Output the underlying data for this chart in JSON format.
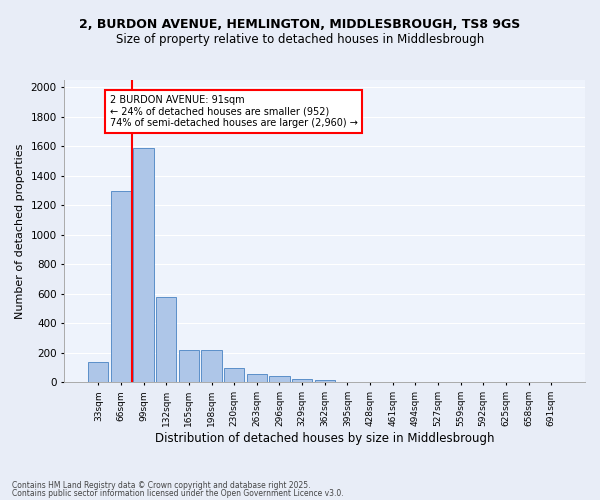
{
  "title1": "2, BURDON AVENUE, HEMLINGTON, MIDDLESBROUGH, TS8 9GS",
  "title2": "Size of property relative to detached houses in Middlesbrough",
  "xlabel": "Distribution of detached houses by size in Middlesbrough",
  "ylabel": "Number of detached properties",
  "categories": [
    "33sqm",
    "66sqm",
    "99sqm",
    "132sqm",
    "165sqm",
    "198sqm",
    "230sqm",
    "263sqm",
    "296sqm",
    "329sqm",
    "362sqm",
    "395sqm",
    "428sqm",
    "461sqm",
    "494sqm",
    "527sqm",
    "559sqm",
    "592sqm",
    "625sqm",
    "658sqm",
    "691sqm"
  ],
  "bar_values": [
    140,
    1295,
    1590,
    580,
    220,
    220,
    100,
    55,
    45,
    25,
    15,
    5,
    0,
    0,
    0,
    0,
    0,
    0,
    0,
    0,
    0
  ],
  "bar_color": "#aec6e8",
  "bar_edge_color": "#5b8fc9",
  "vline_color": "red",
  "annotation_text": "2 BURDON AVENUE: 91sqm\n← 24% of detached houses are smaller (952)\n74% of semi-detached houses are larger (2,960) →",
  "annotation_box_color": "white",
  "annotation_box_edge_color": "red",
  "ylim": [
    0,
    2050
  ],
  "yticks": [
    0,
    200,
    400,
    600,
    800,
    1000,
    1200,
    1400,
    1600,
    1800,
    2000
  ],
  "footer1": "Contains HM Land Registry data © Crown copyright and database right 2025.",
  "footer2": "Contains public sector information licensed under the Open Government Licence v3.0.",
  "bg_color": "#e8edf7",
  "plot_bg_color": "#eef3fc",
  "title_fontsize": 9,
  "subtitle_fontsize": 8.5,
  "ylabel_fontsize": 8,
  "xlabel_fontsize": 8.5
}
